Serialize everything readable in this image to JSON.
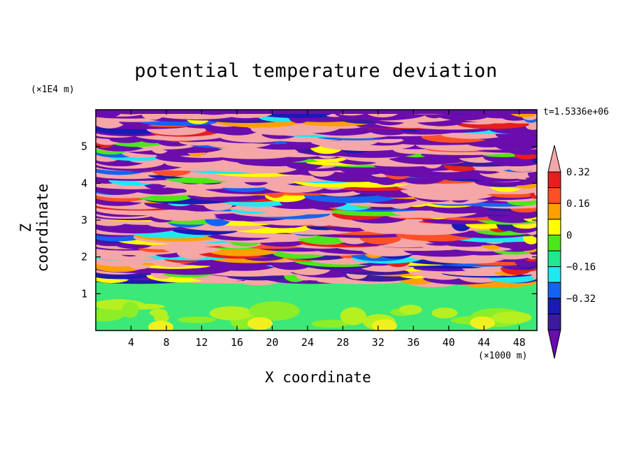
{
  "chart_data": {
    "type": "heatmap",
    "title": "potential temperature deviation",
    "xlabel": "X coordinate",
    "ylabel": "Z coordinate",
    "x_unit": "(×1000 m)",
    "y_unit": "(×1E4 m)",
    "time_label": "t=1.5336e+06",
    "xlim": [
      0,
      50
    ],
    "ylim": [
      0,
      6
    ],
    "x_ticks": [
      4,
      8,
      12,
      16,
      20,
      24,
      28,
      32,
      36,
      40,
      44,
      48
    ],
    "y_ticks": [
      1,
      2,
      3,
      4,
      5
    ],
    "colorbar": {
      "levels": [
        -0.4,
        -0.32,
        -0.24,
        -0.16,
        -0.08,
        0,
        0.08,
        0.16,
        0.24,
        0.32,
        0.4
      ],
      "tick_labels": [
        "0.32",
        "0.16",
        "0",
        "−0.16",
        "−0.32"
      ],
      "tick_values": [
        0.32,
        0.16,
        0,
        -0.16,
        -0.32
      ],
      "colors": [
        "#6a0dad",
        "#3c1a9e",
        "#1a1ab4",
        "#1464f0",
        "#20e8f0",
        "#20e890",
        "#4ce61c",
        "#ffff00",
        "#ffa000",
        "#ff5028",
        "#e61e1e",
        "#f5a6a6"
      ],
      "extend": "both"
    }
  }
}
